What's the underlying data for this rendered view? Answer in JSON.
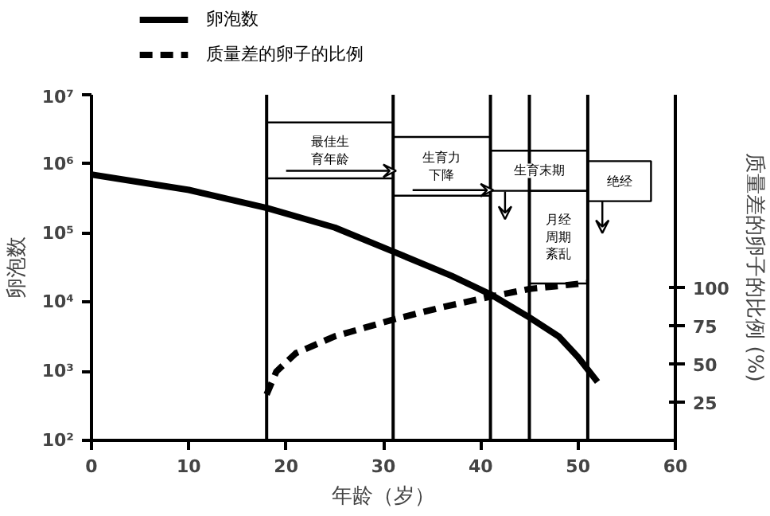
{
  "chart_data": {
    "type": "line",
    "xlabel": "年龄（岁）",
    "ylabel": "卵泡数",
    "y2label": "质量差的卵子的比例 (%)",
    "xlim": [
      0,
      60
    ],
    "xticks": [
      0,
      10,
      20,
      30,
      40,
      50,
      60
    ],
    "ylim": [
      100,
      10000000
    ],
    "yticks": [
      {
        "value": 100,
        "label": "10²"
      },
      {
        "value": 1000,
        "label": "10³"
      },
      {
        "value": 10000,
        "label": "10⁴"
      },
      {
        "value": 100000,
        "label": "10⁵"
      },
      {
        "value": 1000000,
        "label": "10⁶"
      },
      {
        "value": 10000000,
        "label": "10⁷"
      }
    ],
    "log": "y",
    "y2lim": [
      0,
      226
    ],
    "y2ticks": [
      25,
      50,
      75,
      100
    ],
    "series": [
      {
        "name": "卵泡数",
        "color": "#000000",
        "line_style": "solid",
        "x": [
          0,
          10,
          18,
          25,
          31,
          37,
          41,
          45,
          48,
          50,
          52
        ],
        "values": [
          700000,
          420000,
          230000,
          120000,
          54000,
          24000,
          13000,
          6000,
          3200,
          1600,
          700
        ]
      },
      {
        "name": "质量差的卵子的比例",
        "color": "#000000",
        "line_style": "dashed",
        "axis": "y2",
        "x": [
          18,
          19,
          21,
          25,
          31,
          36,
          41,
          45,
          51
        ],
        "values": [
          30,
          45,
          57,
          68,
          79,
          87,
          94,
          99,
          103
        ]
      }
    ],
    "ref_lines": [
      {
        "axis": "x",
        "value": 18
      },
      {
        "axis": "x",
        "value": 31
      },
      {
        "axis": "x",
        "value": 41
      },
      {
        "axis": "x",
        "value": 45
      },
      {
        "axis": "x",
        "value": 51
      }
    ],
    "annotations": [
      "最佳生育年龄",
      "生育力下降",
      "生育末期",
      "月经周期紊乱",
      "绝经"
    ],
    "legend": "top left",
    "grid": false
  }
}
